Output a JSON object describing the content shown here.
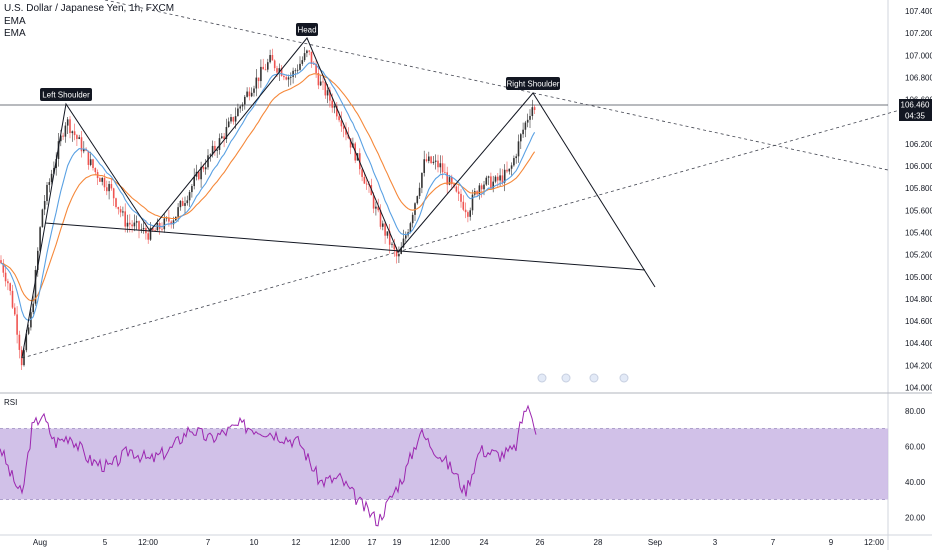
{
  "header": {
    "title": "U.S. Dollar / Japanese Yen, 1h, FXCM",
    "ind1": "EMA",
    "ind2": "EMA"
  },
  "price_axis": {
    "ticks": [
      "107.400",
      "107.200",
      "107.000",
      "106.800",
      "106.600",
      "106.460",
      "106.200",
      "106.000",
      "105.800",
      "105.600",
      "105.400",
      "105.200",
      "105.000",
      "104.800",
      "104.600",
      "104.400",
      "104.200",
      "104.000"
    ],
    "last_price": "106.460",
    "countdown": "04:35"
  },
  "rsi": {
    "label": "RSI",
    "ticks": [
      "80.00",
      "60.00",
      "40.00",
      "20.00"
    ],
    "band": [
      30,
      70
    ],
    "ylim": [
      10,
      90
    ]
  },
  "time_axis": [
    "Aug",
    "5",
    "12:00",
    "7",
    "10",
    "12",
    "12:00",
    "17",
    "19",
    "12:00",
    "24",
    "26",
    "28",
    "Sep",
    "3",
    "7",
    "9",
    "12:00"
  ],
  "patterns": {
    "left_shoulder": "Left Shoulder",
    "head": "Head",
    "right_shoulder": "Right Shoulder"
  },
  "colors": {
    "candle_up": "#333333",
    "candle_down": "#ef5350",
    "ema_fast": "#5aa1e3",
    "ema_slow": "#f5883a",
    "rsi_line": "#9c27b0",
    "rsi_band": "#c9b6e4",
    "label_bg": "#131722"
  },
  "chart_data": [
    {
      "type": "candlestick",
      "title": "U.S. Dollar / Japanese Yen, 1h, FXCM",
      "ylim": [
        103.95,
        107.5
      ],
      "close_path": [
        {
          "t": 0,
          "v": 105.15
        },
        {
          "t": 8,
          "v": 104.95
        },
        {
          "t": 16,
          "v": 104.6
        },
        {
          "t": 22,
          "v": 104.22
        },
        {
          "t": 32,
          "v": 104.7
        },
        {
          "t": 42,
          "v": 105.6
        },
        {
          "t": 52,
          "v": 105.95
        },
        {
          "t": 66,
          "v": 106.42
        },
        {
          "t": 80,
          "v": 106.2
        },
        {
          "t": 95,
          "v": 105.95
        },
        {
          "t": 110,
          "v": 105.8
        },
        {
          "t": 125,
          "v": 105.5
        },
        {
          "t": 150,
          "v": 105.38
        },
        {
          "t": 175,
          "v": 105.55
        },
        {
          "t": 200,
          "v": 105.95
        },
        {
          "t": 225,
          "v": 106.3
        },
        {
          "t": 250,
          "v": 106.7
        },
        {
          "t": 270,
          "v": 106.95
        },
        {
          "t": 290,
          "v": 106.8
        },
        {
          "t": 308,
          "v": 107.03
        },
        {
          "t": 320,
          "v": 106.75
        },
        {
          "t": 340,
          "v": 106.45
        },
        {
          "t": 360,
          "v": 106.0
        },
        {
          "t": 380,
          "v": 105.5
        },
        {
          "t": 398,
          "v": 105.15
        },
        {
          "t": 410,
          "v": 105.5
        },
        {
          "t": 425,
          "v": 106.05
        },
        {
          "t": 440,
          "v": 106.0
        },
        {
          "t": 455,
          "v": 105.75
        },
        {
          "t": 468,
          "v": 105.6
        },
        {
          "t": 480,
          "v": 105.85
        },
        {
          "t": 495,
          "v": 105.85
        },
        {
          "t": 510,
          "v": 105.95
        },
        {
          "t": 522,
          "v": 106.3
        },
        {
          "t": 532,
          "v": 106.55
        },
        {
          "t": 536,
          "v": 106.46
        }
      ]
    },
    {
      "type": "line",
      "title": "RSI",
      "ylim": [
        10,
        90
      ],
      "values": [
        {
          "t": 0,
          "v": 60
        },
        {
          "t": 10,
          "v": 45
        },
        {
          "t": 22,
          "v": 32
        },
        {
          "t": 32,
          "v": 70
        },
        {
          "t": 42,
          "v": 78
        },
        {
          "t": 55,
          "v": 62
        },
        {
          "t": 70,
          "v": 66
        },
        {
          "t": 90,
          "v": 52
        },
        {
          "t": 110,
          "v": 48
        },
        {
          "t": 130,
          "v": 58
        },
        {
          "t": 150,
          "v": 52
        },
        {
          "t": 170,
          "v": 58
        },
        {
          "t": 190,
          "v": 70
        },
        {
          "t": 210,
          "v": 64
        },
        {
          "t": 240,
          "v": 72
        },
        {
          "t": 270,
          "v": 68
        },
        {
          "t": 300,
          "v": 62
        },
        {
          "t": 320,
          "v": 40
        },
        {
          "t": 340,
          "v": 42
        },
        {
          "t": 360,
          "v": 28
        },
        {
          "t": 378,
          "v": 18
        },
        {
          "t": 390,
          "v": 30
        },
        {
          "t": 405,
          "v": 45
        },
        {
          "t": 420,
          "v": 68
        },
        {
          "t": 440,
          "v": 55
        },
        {
          "t": 455,
          "v": 45
        },
        {
          "t": 465,
          "v": 34
        },
        {
          "t": 480,
          "v": 58
        },
        {
          "t": 500,
          "v": 55
        },
        {
          "t": 515,
          "v": 58
        },
        {
          "t": 525,
          "v": 82
        },
        {
          "t": 532,
          "v": 78
        },
        {
          "t": 536,
          "v": 70
        }
      ]
    }
  ]
}
